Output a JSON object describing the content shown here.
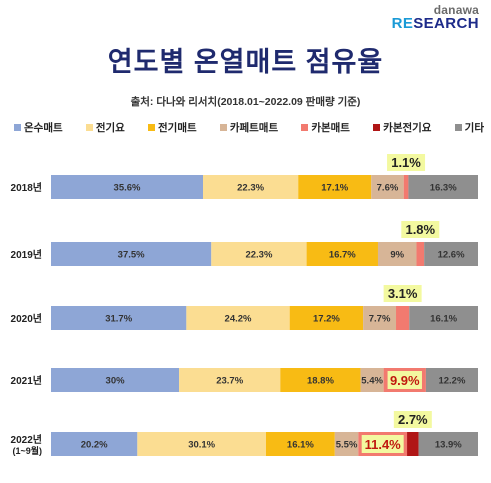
{
  "brand": {
    "top": "danawa",
    "bottom_a": "RE",
    "bottom_b": "SEARCH"
  },
  "title": "연도별 온열매트 점유율",
  "source": "출처: 다나와 리서치(2018.01~2022.09 판매량 기준)",
  "colors": {
    "온수매트": "#8ea6d6",
    "전기요": "#fbdd92",
    "전기매트": "#f8bb14",
    "카페트매트": "#d7b597",
    "카본매트": "#f27a6f",
    "카본전기요": "#b01616",
    "기타": "#8f8f8f",
    "highlight": "#f3f9a0"
  },
  "chart_data": {
    "type": "bar",
    "orientation": "horizontal",
    "stacked": true,
    "unit": "%",
    "categories": [
      "2018년",
      "2019년",
      "2020년",
      "2021년",
      "2022년 (1~9월)"
    ],
    "series": [
      {
        "name": "온수매트",
        "values": [
          35.6,
          37.5,
          31.7,
          30,
          20.2
        ],
        "labels": [
          "35.6%",
          "37.5%",
          "31.7%",
          "30%",
          "20.2%"
        ]
      },
      {
        "name": "전기요",
        "values": [
          22.3,
          22.3,
          24.2,
          23.7,
          30.1
        ],
        "labels": [
          "22.3%",
          "22.3%",
          "24.2%",
          "23.7%",
          "30.1%"
        ]
      },
      {
        "name": "전기매트",
        "values": [
          17.1,
          16.7,
          17.2,
          18.8,
          16.1
        ],
        "labels": [
          "17.1%",
          "16.7%",
          "17.2%",
          "18.8%",
          "16.1%"
        ]
      },
      {
        "name": "카페트매트",
        "values": [
          7.6,
          9,
          7.7,
          5.4,
          5.5
        ],
        "labels": [
          "7.6%",
          "9%",
          "7.7%",
          "5.4%",
          "5.5%"
        ]
      },
      {
        "name": "카본매트",
        "values": [
          1.1,
          1.8,
          3.1,
          9.9,
          11.4
        ],
        "labels": [
          "1.1%",
          "1.8%",
          "3.1%",
          "9.9%",
          "11.4%"
        ]
      },
      {
        "name": "카본전기요",
        "values": [
          0,
          0,
          0,
          0,
          2.7
        ],
        "labels": [
          "",
          "",
          "",
          "",
          "2.7%"
        ]
      },
      {
        "name": "기타",
        "values": [
          16.3,
          12.6,
          16.1,
          12.2,
          13.9
        ],
        "labels": [
          "16.3%",
          "12.6%",
          "16.1%",
          "12.2%",
          "13.9%"
        ]
      }
    ],
    "callouts": [
      {
        "category": 0,
        "series": "카본매트",
        "text": "1.1%"
      },
      {
        "category": 1,
        "series": "카본매트",
        "text": "1.8%"
      },
      {
        "category": 2,
        "series": "카본매트",
        "text": "3.1%"
      },
      {
        "category": 4,
        "series": "카본전기요",
        "text": "2.7%"
      }
    ],
    "inline_highlights": [
      {
        "category": 3,
        "series": "카본매트"
      },
      {
        "category": 4,
        "series": "카본매트"
      }
    ],
    "legend_position": "top",
    "grid": false
  }
}
